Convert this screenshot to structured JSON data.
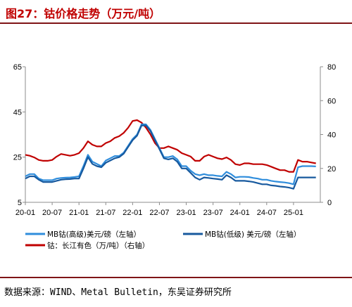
{
  "header": {
    "title": "图27：钴价格走势（万元/吨）"
  },
  "footer": {
    "source": "数据来源：WIND、Metal Bulletin，东吴证券研究所"
  },
  "colors": {
    "series_high": "#2f8ddc",
    "series_low": "#17599e",
    "series_cn": "#c00000"
  },
  "chart_data": {
    "type": "line",
    "title": "钴价格走势（万元/吨）",
    "x_ticks": [
      "20-01",
      "20-07",
      "21-01",
      "21-07",
      "22-01",
      "22-07",
      "23-01",
      "23-07",
      "24-01",
      "24-07",
      "25-01"
    ],
    "x_range": [
      "2020-01",
      "2025-07"
    ],
    "left_axis": {
      "ticks": [
        "5",
        "25",
        "45",
        "65"
      ],
      "range": [
        5,
        65
      ]
    },
    "right_axis": {
      "ticks": [
        "0",
        "20",
        "40",
        "60",
        "80"
      ],
      "range": [
        0,
        80
      ]
    },
    "legend_placement": "bottom",
    "grid": false,
    "series": [
      {
        "name": "MB钴(高级)美元/磅（左轴）",
        "axis": "left",
        "x": [
          "2020-01",
          "2020-02",
          "2020-03",
          "2020-04",
          "2020-05",
          "2020-06",
          "2020-07",
          "2020-08",
          "2020-09",
          "2020-10",
          "2020-11",
          "2020-12",
          "2021-01",
          "2021-02",
          "2021-03",
          "2021-04",
          "2021-05",
          "2021-06",
          "2021-07",
          "2021-08",
          "2021-09",
          "2021-10",
          "2021-11",
          "2021-12",
          "2022-01",
          "2022-02",
          "2022-03",
          "2022-04",
          "2022-05",
          "2022-06",
          "2022-07",
          "2022-08",
          "2022-09",
          "2022-10",
          "2022-11",
          "2022-12",
          "2023-01",
          "2023-02",
          "2023-03",
          "2023-04",
          "2023-05",
          "2023-06",
          "2023-07",
          "2023-08",
          "2023-09",
          "2023-10",
          "2023-11",
          "2023-12",
          "2024-01",
          "2024-02",
          "2024-03",
          "2024-04",
          "2024-05",
          "2024-06",
          "2024-07",
          "2024-08",
          "2024-09",
          "2024-10",
          "2024-11",
          "2024-12",
          "2025-01",
          "2025-02",
          "2025-03",
          "2025-04",
          "2025-05",
          "2025-06"
        ],
        "values": [
          16.5,
          17.5,
          17.5,
          15.5,
          14.8,
          14.8,
          14.8,
          15.5,
          15.8,
          15.9,
          16,
          16.2,
          16.5,
          21,
          26,
          23,
          22,
          21,
          23.5,
          24.5,
          25.5,
          25.5,
          27,
          30,
          33,
          35,
          39.5,
          39.5,
          37,
          33,
          29,
          25,
          25,
          25.5,
          24,
          21,
          21,
          19,
          17.5,
          17,
          17.5,
          17,
          17,
          16.7,
          16.5,
          18.5,
          17.5,
          16,
          16.3,
          16.3,
          16.2,
          15.8,
          15.5,
          15,
          15,
          14.5,
          14.2,
          14,
          13.8,
          13.5,
          13,
          20.5,
          21,
          21,
          21,
          20.9
        ]
      },
      {
        "name": "MB钴(低级) 美元/磅（左轴）",
        "axis": "left",
        "x": [
          "2020-01",
          "2020-02",
          "2020-03",
          "2020-04",
          "2020-05",
          "2020-06",
          "2020-07",
          "2020-08",
          "2020-09",
          "2020-10",
          "2020-11",
          "2020-12",
          "2021-01",
          "2021-02",
          "2021-03",
          "2021-04",
          "2021-05",
          "2021-06",
          "2021-07",
          "2021-08",
          "2021-09",
          "2021-10",
          "2021-11",
          "2021-12",
          "2022-01",
          "2022-02",
          "2022-03",
          "2022-04",
          "2022-05",
          "2022-06",
          "2022-07",
          "2022-08",
          "2022-09",
          "2022-10",
          "2022-11",
          "2022-12",
          "2023-01",
          "2023-02",
          "2023-03",
          "2023-04",
          "2023-05",
          "2023-06",
          "2023-07",
          "2023-08",
          "2023-09",
          "2023-10",
          "2023-11",
          "2023-12",
          "2024-01",
          "2024-02",
          "2024-03",
          "2024-04",
          "2024-05",
          "2024-06",
          "2024-07",
          "2024-08",
          "2024-09",
          "2024-10",
          "2024-11",
          "2024-12",
          "2025-01",
          "2025-02",
          "2025-03",
          "2025-04",
          "2025-05",
          "2025-06"
        ],
        "values": [
          15.5,
          16.5,
          16.5,
          15,
          14,
          14,
          14,
          14.5,
          15,
          15.2,
          15.3,
          15.5,
          15.5,
          20,
          25,
          22,
          21,
          20.5,
          22.5,
          23.5,
          24.5,
          25,
          26.5,
          29.5,
          32.5,
          34.5,
          39,
          39,
          36.5,
          32.5,
          28.5,
          24.5,
          24,
          24.5,
          23,
          20,
          20,
          18,
          16,
          15,
          16,
          15.8,
          15.5,
          15.3,
          15,
          17,
          16,
          14.5,
          14.5,
          14.5,
          14.3,
          14,
          13.5,
          13,
          13,
          12.5,
          12.3,
          12,
          11.8,
          11.5,
          11,
          16,
          16,
          16,
          16,
          16
        ]
      },
      {
        "name": "钴：长江有色（万/吨）（右轴）",
        "axis": "right",
        "x": [
          "2020-01",
          "2020-02",
          "2020-03",
          "2020-04",
          "2020-05",
          "2020-06",
          "2020-07",
          "2020-08",
          "2020-09",
          "2020-10",
          "2020-11",
          "2020-12",
          "2021-01",
          "2021-02",
          "2021-03",
          "2021-04",
          "2021-05",
          "2021-06",
          "2021-07",
          "2021-08",
          "2021-09",
          "2021-10",
          "2021-11",
          "2021-12",
          "2022-01",
          "2022-02",
          "2022-03",
          "2022-04",
          "2022-05",
          "2022-06",
          "2022-07",
          "2022-08",
          "2022-09",
          "2022-10",
          "2022-11",
          "2022-12",
          "2023-01",
          "2023-02",
          "2023-03",
          "2023-04",
          "2023-05",
          "2023-06",
          "2023-07",
          "2023-08",
          "2023-09",
          "2023-10",
          "2023-11",
          "2023-12",
          "2024-01",
          "2024-02",
          "2024-03",
          "2024-04",
          "2024-05",
          "2024-06",
          "2024-07",
          "2024-08",
          "2024-09",
          "2024-10",
          "2024-11",
          "2024-12",
          "2025-01",
          "2025-02",
          "2025-03",
          "2025-04",
          "2025-05",
          "2025-06"
        ],
        "values": [
          28,
          27.5,
          26.5,
          25,
          24.5,
          24.5,
          25,
          27,
          28.5,
          28,
          27.5,
          28,
          29,
          32,
          36,
          34,
          33,
          33,
          35,
          36,
          38,
          39,
          41,
          44,
          48,
          48.5,
          47,
          44,
          40,
          35,
          32,
          32,
          33,
          32,
          31,
          29,
          28,
          27,
          24.5,
          24.5,
          27,
          28,
          27,
          26,
          25.5,
          26.5,
          25,
          22.5,
          22,
          23,
          23,
          22.5,
          22.5,
          22.5,
          22,
          21,
          20,
          19,
          19,
          18,
          18,
          25,
          24,
          24,
          23.5,
          23
        ]
      }
    ]
  }
}
